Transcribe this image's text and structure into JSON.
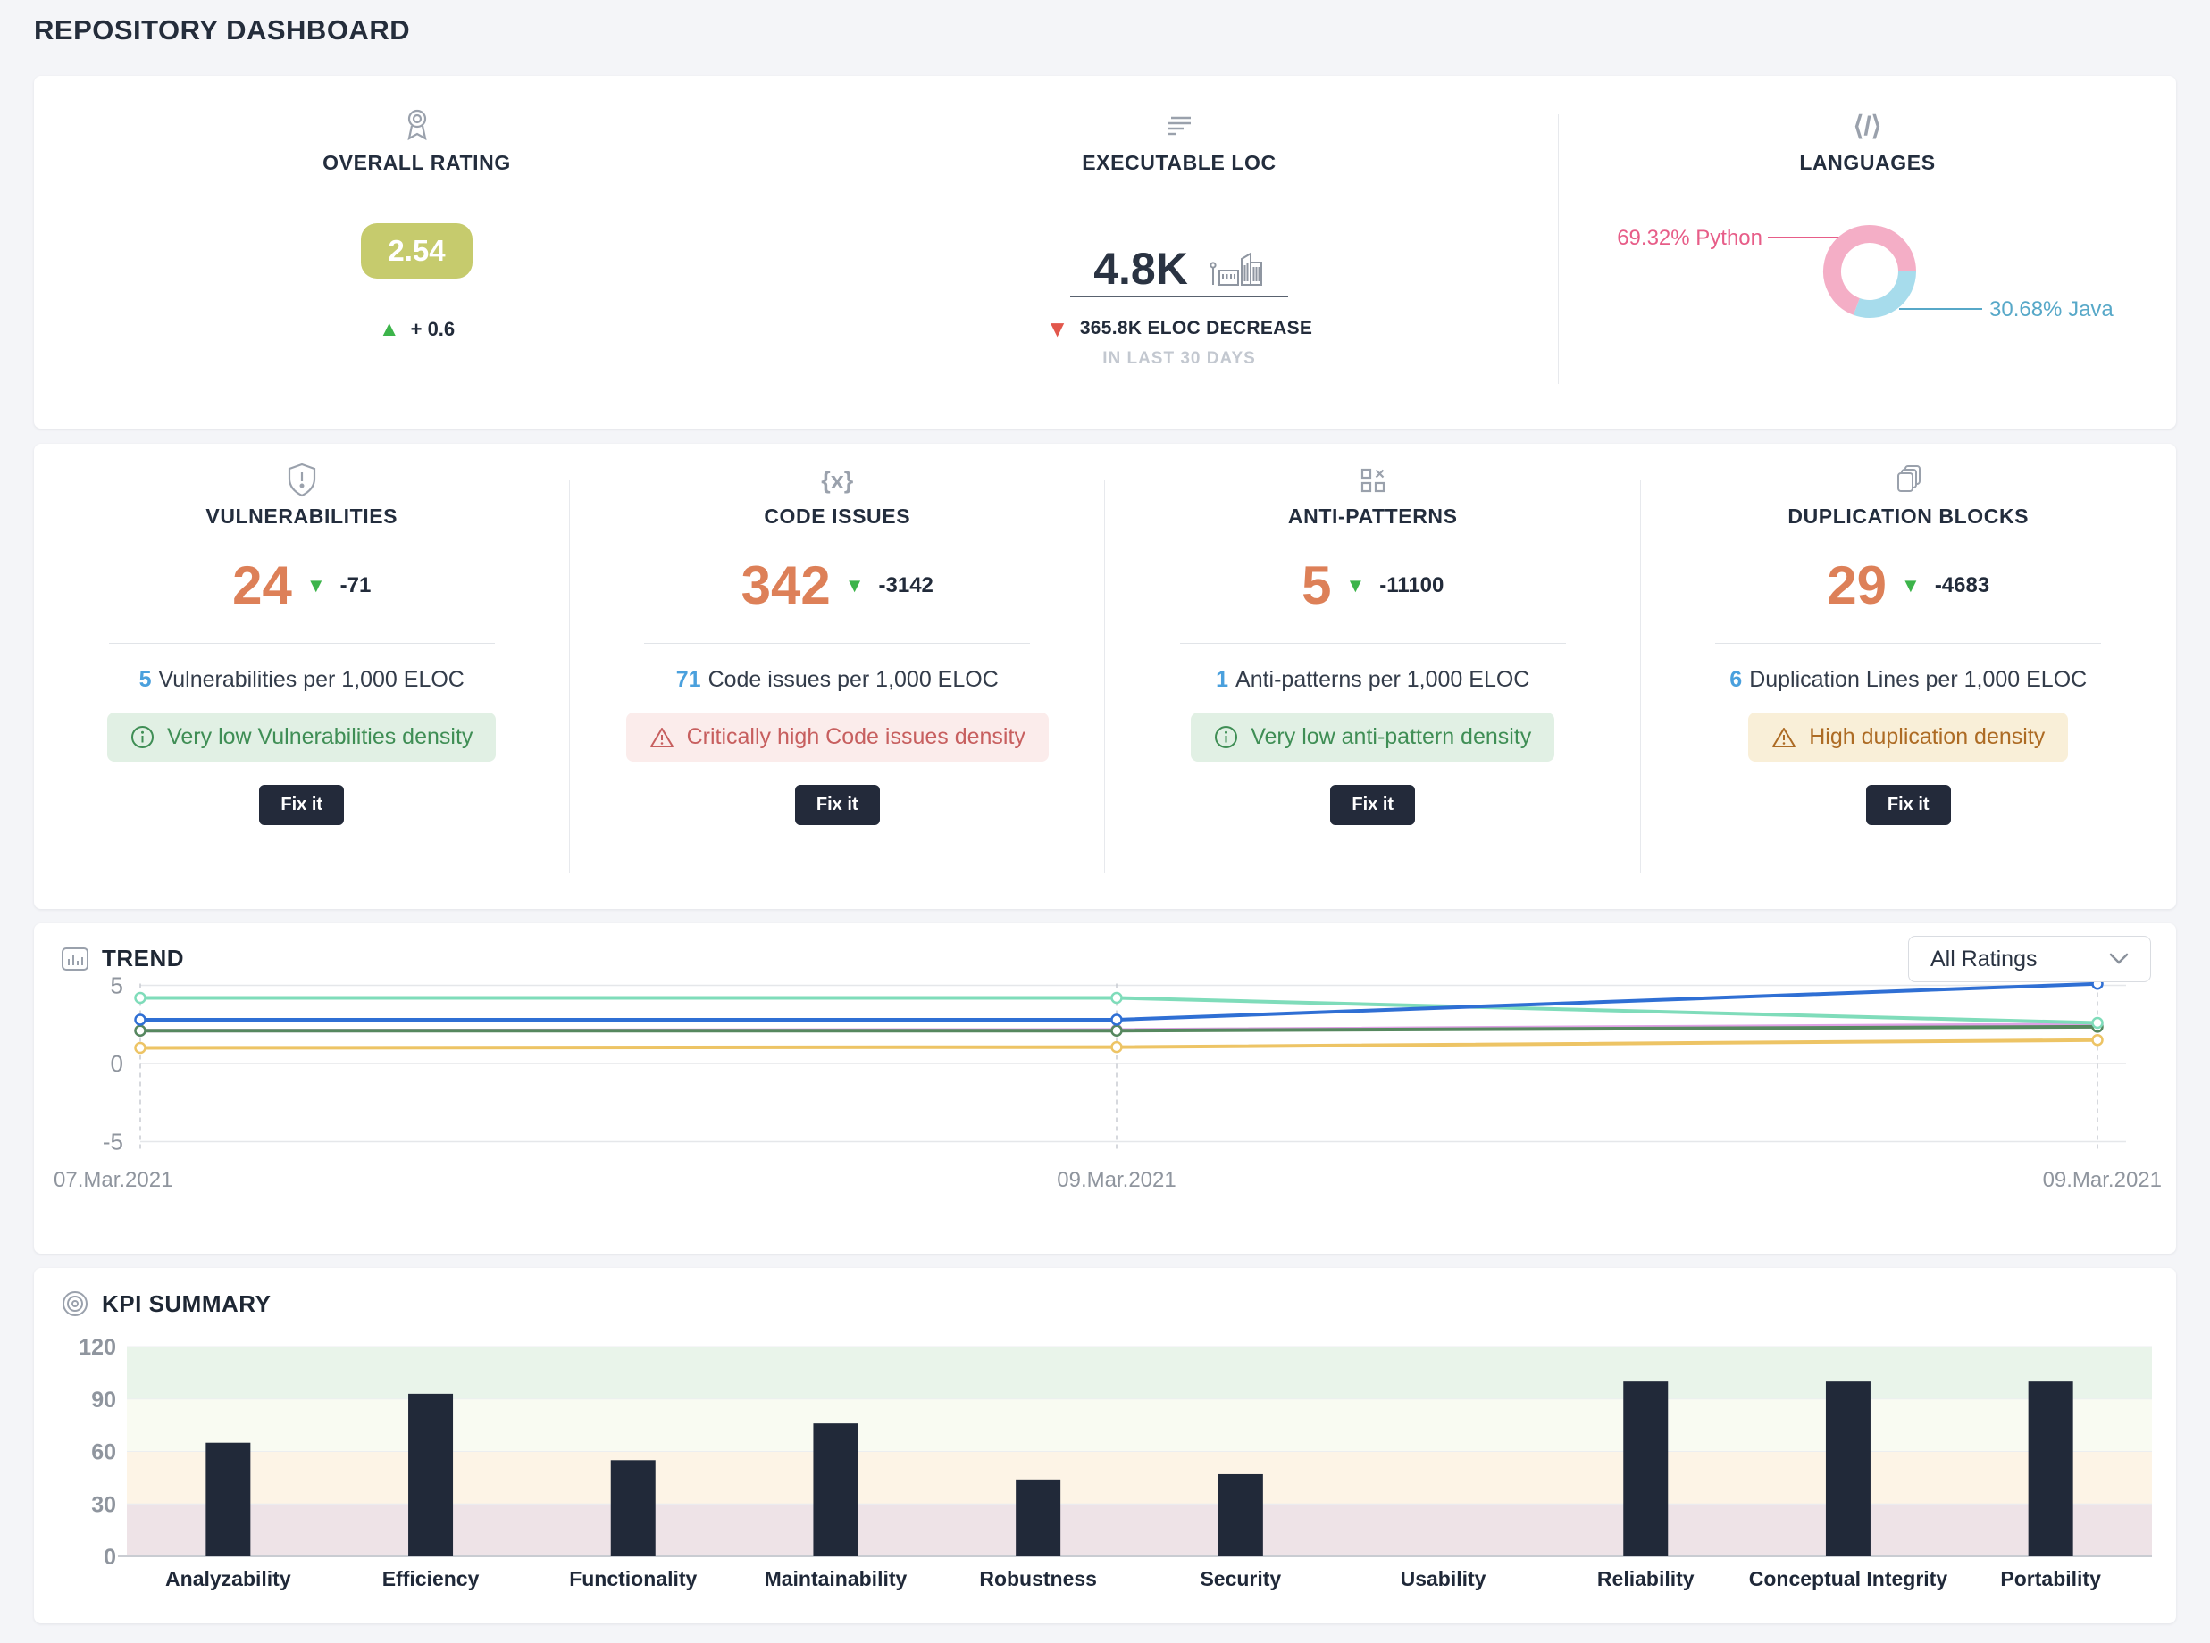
{
  "page": {
    "title": "REPOSITORY DASHBOARD"
  },
  "colors": {
    "accent_orange": "#dd8058",
    "accent_blue": "#4aa0dd",
    "positive_green": "#3cb44a",
    "negative_red": "#e2574c",
    "dark_navy": "#232a3a",
    "icon_gray": "#9aa1ac"
  },
  "summary": {
    "overall_rating": {
      "label": "OVERALL RATING",
      "value": "2.54",
      "delta": "+ 0.6",
      "badge_color": "#c6cb6d"
    },
    "executable_loc": {
      "label": "EXECUTABLE LOC",
      "value": "4.8K",
      "delta": "365.8K ELOC DECREASE",
      "period": "IN LAST 30 DAYS"
    },
    "languages": {
      "label": "LANGUAGES",
      "slices": [
        {
          "name": "Python",
          "pct": 69.32,
          "color": "#f4aec6",
          "label": "69.32% Python",
          "label_color": "#e75d88"
        },
        {
          "name": "Java",
          "pct": 30.68,
          "color": "#a7dcec",
          "label": "30.68% Java",
          "label_color": "#57a8c8"
        }
      ]
    }
  },
  "metrics": [
    {
      "label": "VULNERABILITIES",
      "icon": "shield-alert-icon",
      "value": "24",
      "delta": "-71",
      "density_value": "5",
      "density_text": "Vulnerabilities per 1,000 ELOC",
      "status": {
        "type": "good",
        "icon": "info-icon",
        "text": "Very low Vulnerabilities density",
        "text_color": "#3f8e55",
        "bg_color": "#e1f0e4"
      },
      "action": "Fix it"
    },
    {
      "label": "CODE ISSUES",
      "icon": "code-braces-icon",
      "value": "342",
      "delta": "-3142",
      "density_value": "71",
      "density_text": "Code issues per 1,000 ELOC",
      "status": {
        "type": "critical",
        "icon": "warning-icon",
        "text": "Critically high Code issues density",
        "text_color": "#c75f5f",
        "bg_color": "#fbeceb"
      },
      "action": "Fix it"
    },
    {
      "label": "ANTI-PATTERNS",
      "icon": "grid-x-icon",
      "value": "5",
      "delta": "-11100",
      "density_value": "1",
      "density_text": "Anti-patterns per 1,000 ELOC",
      "status": {
        "type": "good",
        "icon": "info-icon",
        "text": "Very low anti-pattern density",
        "text_color": "#3f8e55",
        "bg_color": "#e1f0e4"
      },
      "action": "Fix it"
    },
    {
      "label": "DUPLICATION BLOCKS",
      "icon": "pages-icon",
      "value": "29",
      "delta": "-4683",
      "density_value": "6",
      "density_text": "Duplication Lines per 1,000 ELOC",
      "status": {
        "type": "warning",
        "icon": "warning-icon",
        "text": "High duplication density",
        "text_color": "#ad6b24",
        "bg_color": "#f9efd8"
      },
      "action": "Fix it"
    }
  ],
  "trend": {
    "title": "TREND",
    "dropdown_label": "All Ratings"
  },
  "kpi": {
    "title": "KPI SUMMARY"
  },
  "chart_data": [
    {
      "type": "line",
      "title": "TREND",
      "x_labels": [
        "07.Mar.2021",
        "09.Mar.2021",
        "09.Mar.2021"
      ],
      "ylim": [
        -5,
        5
      ],
      "yticks": [
        5,
        0,
        -5
      ],
      "grid": true,
      "legend": "none",
      "series": [
        {
          "name": "violet-rating",
          "color": "#dfa1e6",
          "values": [
            2.1,
            2.15,
            2.5
          ]
        },
        {
          "name": "green-rating",
          "color": "#56885f",
          "values": [
            2.1,
            2.1,
            2.35
          ]
        },
        {
          "name": "teal-rating",
          "color": "#7fdcba",
          "values": [
            4.2,
            4.2,
            2.6
          ]
        },
        {
          "name": "yellow-rating",
          "color": "#edc465",
          "values": [
            1.0,
            1.05,
            1.5
          ]
        },
        {
          "name": "blue-rating",
          "color": "#2f6fd4",
          "values": [
            2.8,
            2.8,
            5.1
          ]
        }
      ]
    },
    {
      "type": "bar",
      "title": "KPI SUMMARY",
      "categories": [
        "Analyzability",
        "Efficiency",
        "Functionality",
        "Maintainability",
        "Robustness",
        "Security",
        "Usability",
        "Reliability",
        "Conceptual Integrity",
        "Portability"
      ],
      "values": [
        65,
        93,
        55,
        76,
        44,
        47,
        0,
        100,
        100,
        100
      ],
      "bar_color": "#212939",
      "ylim": [
        0,
        120
      ],
      "yticks": [
        0,
        30,
        60,
        90,
        120
      ],
      "bands": [
        {
          "from": 90,
          "to": 120,
          "color": "#e9f4ea"
        },
        {
          "from": 60,
          "to": 90,
          "color": "#f9fbf2"
        },
        {
          "from": 30,
          "to": 60,
          "color": "#fdf4e6"
        },
        {
          "from": 0,
          "to": 30,
          "color": "#eee3e7"
        }
      ]
    }
  ]
}
